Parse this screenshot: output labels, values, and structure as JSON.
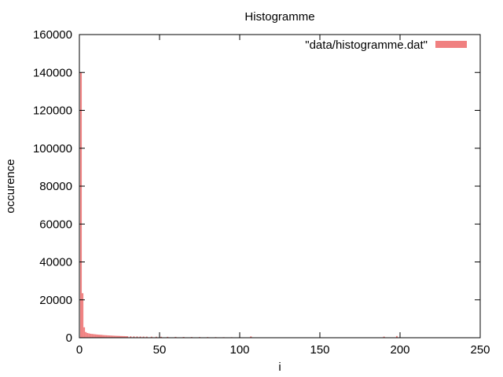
{
  "chart_data": {
    "type": "bar",
    "title": "Histogramme",
    "xlabel": "i",
    "ylabel": "occurence",
    "xlim": [
      0,
      250
    ],
    "ylim": [
      0,
      160000
    ],
    "xticks": [
      0,
      50,
      100,
      150,
      200,
      250
    ],
    "yticks": [
      0,
      20000,
      40000,
      60000,
      80000,
      100000,
      120000,
      140000,
      160000
    ],
    "xtick_labels": [
      "0",
      "50",
      "100",
      "150",
      "200",
      "250"
    ],
    "ytick_labels": [
      "0",
      "20000",
      "40000",
      "60000",
      "80000",
      "100000",
      "120000",
      "140000",
      "160000"
    ],
    "grid": false,
    "legend_position": "top-right",
    "series": [
      {
        "name": "\"data/histogramme.dat\"",
        "color": "#f08080",
        "x": [
          1,
          2,
          3,
          4,
          5,
          6,
          7,
          8,
          9,
          10,
          11,
          12,
          13,
          14,
          15,
          16,
          17,
          18,
          19,
          20,
          21,
          22,
          23,
          24,
          25,
          26,
          27,
          28,
          29,
          30,
          32,
          34,
          36,
          38,
          40,
          42,
          45,
          48,
          51,
          55,
          60,
          65,
          70,
          75,
          80,
          85,
          90,
          95,
          100,
          107,
          120,
          150,
          190,
          198
        ],
        "values": [
          140000,
          23500,
          5500,
          3000,
          2500,
          2300,
          2100,
          2000,
          1900,
          1800,
          1700,
          1600,
          1550,
          1500,
          1400,
          1350,
          1300,
          1250,
          1200,
          1150,
          1100,
          1050,
          1000,
          980,
          950,
          900,
          880,
          850,
          820,
          800,
          760,
          720,
          690,
          660,
          630,
          600,
          570,
          540,
          510,
          480,
          450,
          420,
          390,
          360,
          340,
          320,
          300,
          280,
          260,
          700,
          150,
          100,
          600,
          900
        ]
      }
    ]
  }
}
